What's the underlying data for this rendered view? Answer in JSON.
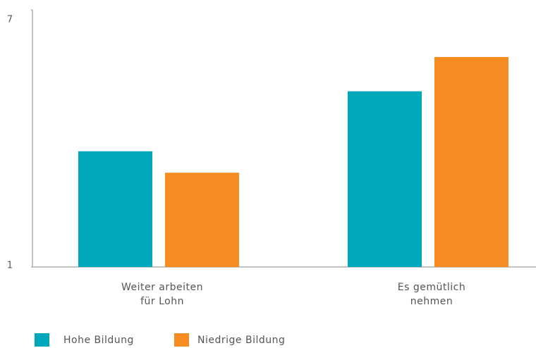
{
  "chart_data": {
    "type": "bar",
    "categories": [
      "Weiter arbeiten für Lohn",
      "Es gemütlich nehmen"
    ],
    "series": [
      {
        "name": "Hohe Bildung",
        "color": "#00a8bc",
        "values": [
          3.7,
          5.1
        ]
      },
      {
        "name": "Niedrige Bildung",
        "color": "#f68b21",
        "values": [
          3.2,
          5.9
        ]
      }
    ],
    "ylim": [
      1,
      7
    ],
    "yticks": [
      1,
      7
    ],
    "grid": false
  }
}
